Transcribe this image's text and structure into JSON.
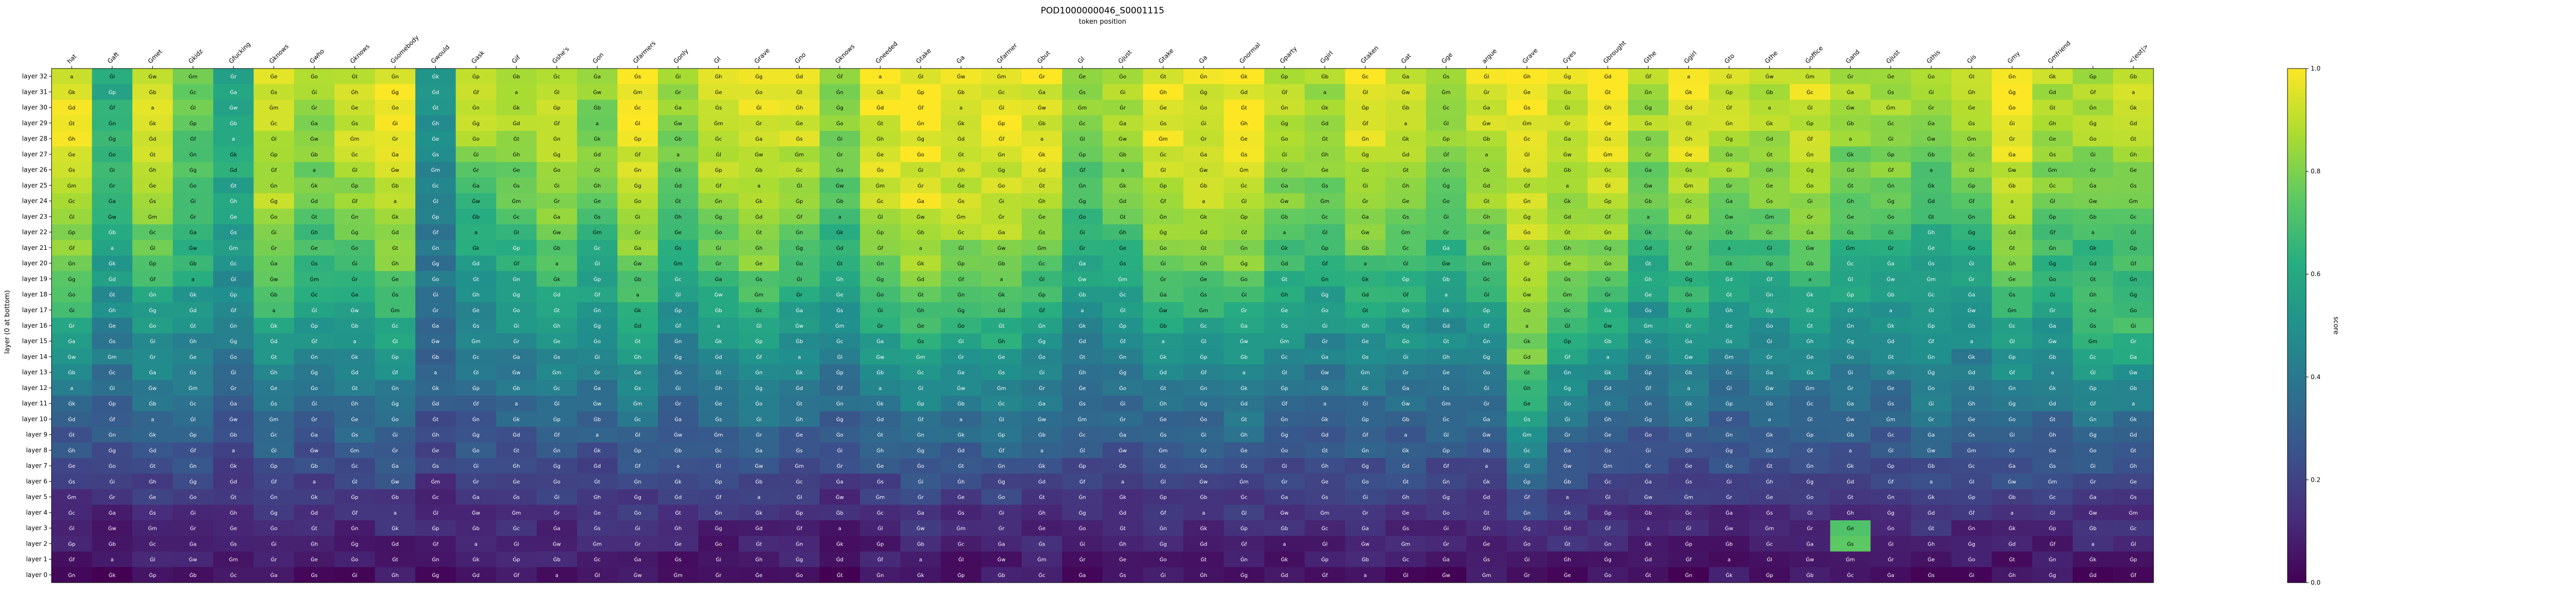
{
  "chart_data": {
    "type": "heatmap",
    "title": "POD1000000046_S0001115",
    "subtitle": "token position",
    "ylabel": "layer (0 at bottom)",
    "colorbar": {
      "label": "score",
      "ticks": [
        0.0,
        0.2,
        0.4,
        0.6,
        0.8,
        1.0
      ],
      "range": [
        0,
        1
      ],
      "colormap": "viridis"
    },
    "x_tokens": [
      "hat",
      "Gaft",
      "Gmet",
      "Gkidz",
      "Gfucking",
      "Gknows",
      "Gwho",
      "Gknows",
      "Gsomebody",
      "Gwould",
      "Gask",
      "Gif",
      "Gshe's",
      "Gon",
      "Gfarmers",
      "Gonly",
      "Gl",
      "Grave",
      "Gno",
      "Gknows",
      "Gneeded",
      "Gtake",
      "Ga",
      "Gfarmer",
      "Gbut",
      "Gl",
      "Gjust",
      "Gtake",
      "Ga",
      "Gnormal",
      "Gparty",
      "Ggirl",
      "Gtaken",
      "Gat",
      "Gge",
      "argue",
      "Grave",
      "Gyes",
      "Gbrought",
      "Gthe",
      "Ggirl",
      "Gto",
      "Gthe",
      "Goffice",
      "Gand",
      "Gjust",
      "Gthis",
      "Gis",
      "Gmy",
      "Gmfriend",
      "",
      "<|eot|>"
    ],
    "y_layers": [
      "layer 32",
      "layer 31",
      "layer 30",
      "layer 29",
      "layer 28",
      "layer 27",
      "layer 26",
      "layer 25",
      "layer 24",
      "layer 23",
      "layer 22",
      "layer 21",
      "layer 20",
      "layer 19",
      "layer 18",
      "layer 17",
      "layer 16",
      "layer 15",
      "layer 14",
      "layer 13",
      "layer 12",
      "layer 11",
      "layer 10",
      "layer 9",
      "layer 8",
      "layer 7",
      "layer 6",
      "layer 5",
      "layer 4",
      "layer 3",
      "layer 2",
      "layer 1",
      "layer 0"
    ],
    "cell_labels": [
      "a",
      "Ġt",
      "Ġs",
      "Ġl",
      "Ġn",
      "Ġi",
      "Ġw",
      "Ġk",
      "Ġh",
      "Ġm",
      "Ġp",
      "Ġg",
      "Ġr",
      "Ġb",
      "Ġd",
      "Ġe",
      "Ġc",
      "Ġf",
      "Ġo",
      "Ġa"
    ],
    "anchors": [
      [
        0.97,
        0.6,
        0.95,
        0.78,
        0.6,
        0.95,
        0.85,
        0.92,
        0.98,
        0.55,
        0.95,
        0.9,
        0.92,
        0.85,
        0.98,
        0.85,
        0.95,
        0.97,
        0.95,
        0.85,
        0.98,
        0.99,
        0.98,
        0.98,
        0.97,
        0.85,
        0.9,
        0.98,
        0.97,
        0.99,
        0.92,
        0.88,
        0.97,
        0.95,
        0.9,
        0.95,
        0.97,
        0.95,
        0.97,
        0.9,
        0.98,
        0.92,
        0.92,
        0.95,
        0.88,
        0.9,
        0.85,
        0.9,
        0.97,
        0.9,
        0.88,
        0.92
      ],
      [
        0.95,
        0.65,
        0.92,
        0.75,
        0.62,
        0.92,
        0.82,
        0.9,
        0.95,
        0.5,
        0.85,
        0.85,
        0.9,
        0.8,
        0.95,
        0.8,
        0.92,
        0.95,
        0.92,
        0.8,
        0.95,
        0.97,
        0.95,
        0.95,
        0.95,
        0.8,
        0.85,
        0.95,
        0.95,
        0.97,
        0.88,
        0.85,
        0.95,
        0.92,
        0.85,
        0.92,
        0.95,
        0.92,
        0.95,
        0.85,
        0.95,
        0.88,
        0.88,
        0.92,
        0.82,
        0.85,
        0.8,
        0.85,
        0.95,
        0.85,
        0.85,
        0.88
      ],
      [
        0.9,
        0.62,
        0.85,
        0.7,
        0.58,
        0.88,
        0.75,
        0.82,
        0.9,
        0.45,
        0.7,
        0.75,
        0.85,
        0.75,
        0.9,
        0.7,
        0.85,
        0.9,
        0.85,
        0.72,
        0.9,
        0.95,
        0.9,
        0.92,
        0.9,
        0.7,
        0.78,
        0.88,
        0.9,
        0.92,
        0.8,
        0.78,
        0.88,
        0.85,
        0.75,
        0.85,
        0.92,
        0.88,
        0.9,
        0.75,
        0.88,
        0.8,
        0.8,
        0.85,
        0.75,
        0.75,
        0.7,
        0.75,
        0.9,
        0.78,
        0.78,
        0.8
      ],
      [
        0.8,
        0.55,
        0.72,
        0.62,
        0.5,
        0.8,
        0.65,
        0.7,
        0.8,
        0.4,
        0.55,
        0.62,
        0.72,
        0.62,
        0.8,
        0.58,
        0.72,
        0.8,
        0.72,
        0.6,
        0.78,
        0.85,
        0.8,
        0.82,
        0.75,
        0.58,
        0.65,
        0.75,
        0.78,
        0.8,
        0.68,
        0.62,
        0.72,
        0.7,
        0.62,
        0.72,
        0.9,
        0.8,
        0.78,
        0.62,
        0.72,
        0.65,
        0.65,
        0.72,
        0.62,
        0.62,
        0.58,
        0.62,
        0.78,
        0.65,
        0.65,
        0.68
      ],
      [
        0.6,
        0.45,
        0.55,
        0.5,
        0.42,
        0.62,
        0.52,
        0.55,
        0.62,
        0.35,
        0.45,
        0.5,
        0.55,
        0.5,
        0.62,
        0.48,
        0.55,
        0.62,
        0.55,
        0.48,
        0.6,
        0.68,
        0.62,
        0.65,
        0.58,
        0.48,
        0.52,
        0.58,
        0.6,
        0.62,
        0.55,
        0.5,
        0.55,
        0.55,
        0.5,
        0.55,
        0.85,
        0.65,
        0.6,
        0.5,
        0.55,
        0.52,
        0.52,
        0.55,
        0.5,
        0.5,
        0.55,
        0.5,
        0.6,
        0.55,
        0.7,
        0.72
      ],
      [
        0.4,
        0.35,
        0.4,
        0.38,
        0.33,
        0.45,
        0.38,
        0.4,
        0.45,
        0.3,
        0.35,
        0.38,
        0.4,
        0.38,
        0.45,
        0.36,
        0.4,
        0.45,
        0.4,
        0.36,
        0.42,
        0.48,
        0.45,
        0.48,
        0.42,
        0.36,
        0.38,
        0.42,
        0.42,
        0.45,
        0.4,
        0.38,
        0.4,
        0.4,
        0.38,
        0.4,
        0.7,
        0.48,
        0.42,
        0.38,
        0.4,
        0.38,
        0.38,
        0.4,
        0.38,
        0.38,
        0.45,
        0.38,
        0.45,
        0.4,
        0.45,
        0.45
      ],
      [
        0.25,
        0.25,
        0.28,
        0.26,
        0.24,
        0.3,
        0.26,
        0.28,
        0.3,
        0.22,
        0.25,
        0.26,
        0.28,
        0.26,
        0.3,
        0.25,
        0.28,
        0.3,
        0.28,
        0.25,
        0.28,
        0.32,
        0.3,
        0.32,
        0.28,
        0.25,
        0.26,
        0.28,
        0.28,
        0.3,
        0.28,
        0.26,
        0.28,
        0.28,
        0.26,
        0.28,
        0.45,
        0.32,
        0.28,
        0.26,
        0.28,
        0.26,
        0.26,
        0.28,
        0.26,
        0.26,
        0.3,
        0.26,
        0.3,
        0.28,
        0.3,
        0.3
      ],
      [
        0.12,
        0.12,
        0.14,
        0.13,
        0.12,
        0.15,
        0.13,
        0.14,
        0.15,
        0.11,
        0.12,
        0.13,
        0.14,
        0.13,
        0.15,
        0.12,
        0.14,
        0.15,
        0.14,
        0.12,
        0.14,
        0.16,
        0.15,
        0.16,
        0.14,
        0.12,
        0.13,
        0.14,
        0.14,
        0.15,
        0.14,
        0.13,
        0.14,
        0.14,
        0.13,
        0.14,
        0.22,
        0.16,
        0.14,
        0.13,
        0.14,
        0.13,
        0.13,
        0.14,
        0.13,
        0.13,
        0.15,
        0.13,
        0.15,
        0.14,
        0.15,
        0.15
      ],
      [
        0.04,
        0.04,
        0.05,
        0.05,
        0.04,
        0.05,
        0.05,
        0.05,
        0.05,
        0.04,
        0.04,
        0.05,
        0.05,
        0.05,
        0.05,
        0.04,
        0.05,
        0.05,
        0.05,
        0.04,
        0.05,
        0.06,
        0.05,
        0.06,
        0.05,
        0.04,
        0.05,
        0.05,
        0.05,
        0.05,
        0.05,
        0.05,
        0.05,
        0.05,
        0.05,
        0.05,
        0.08,
        0.06,
        0.05,
        0.05,
        0.05,
        0.05,
        0.05,
        0.05,
        0.05,
        0.05,
        0.05,
        0.05,
        0.05,
        0.05,
        0.05,
        0.05
      ]
    ],
    "anchor_layers": [
      32,
      28,
      24,
      20,
      16,
      12,
      8,
      4,
      0
    ],
    "highlights": [
      {
        "row": "layer 2",
        "col": 44,
        "value": 0.75
      },
      {
        "row": "layer 3",
        "col": 44,
        "value": 0.72
      }
    ]
  }
}
